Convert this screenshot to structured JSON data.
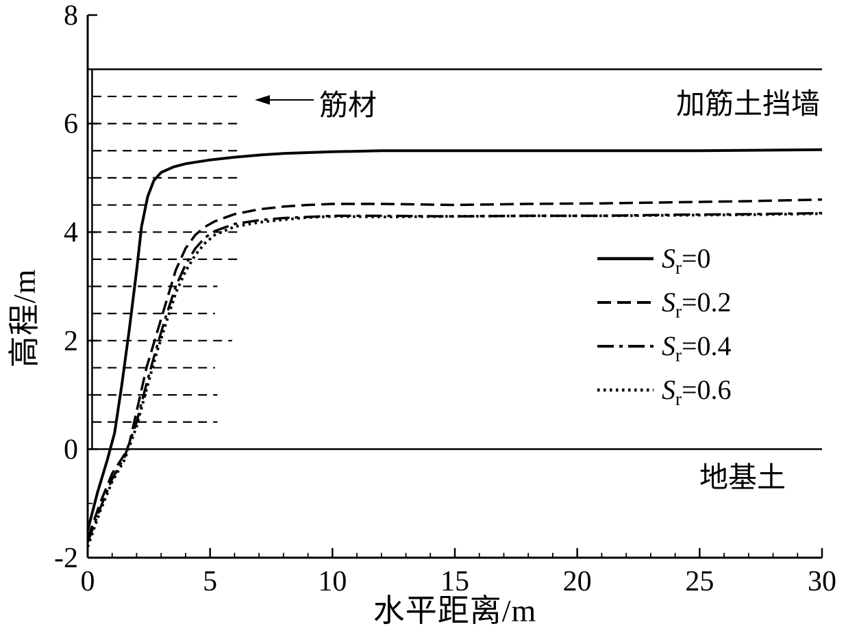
{
  "figure": {
    "background": "#ffffff",
    "ink": "#000000"
  },
  "axes": {
    "x": {
      "label": "水平距离/m",
      "min": 0,
      "max": 30,
      "major_ticks": [
        0,
        5,
        10,
        15,
        20,
        25,
        30
      ],
      "minor_step": 1
    },
    "y": {
      "label": "高程/m",
      "min": -2,
      "max": 8,
      "major_ticks": [
        -2,
        0,
        2,
        4,
        6,
        8
      ],
      "minor_step": 1
    }
  },
  "annotations": {
    "reinforcement_label": "筋材",
    "wall_label": "加筋土挡墙",
    "foundation_label": "地基土"
  },
  "chart_data": {
    "type": "line",
    "title": "",
    "xlabel": "水平距离/m",
    "ylabel": "高程/m",
    "xlim": [
      0,
      30
    ],
    "ylim": [
      -2,
      8
    ],
    "grid": false,
    "legend_position": "center-right",
    "series": [
      {
        "label_var": "S",
        "label_sub": "r",
        "label_eq": "=0",
        "style": "solid",
        "points": [
          [
            0,
            -1.5
          ],
          [
            0.4,
            -0.8
          ],
          [
            0.8,
            -0.2
          ],
          [
            1.1,
            0.3
          ],
          [
            1.4,
            1.2
          ],
          [
            1.7,
            2.2
          ],
          [
            2.0,
            3.3
          ],
          [
            2.2,
            4.1
          ],
          [
            2.45,
            4.65
          ],
          [
            2.7,
            4.95
          ],
          [
            3.0,
            5.1
          ],
          [
            3.5,
            5.2
          ],
          [
            4,
            5.26
          ],
          [
            5,
            5.33
          ],
          [
            6,
            5.38
          ],
          [
            7,
            5.42
          ],
          [
            8,
            5.45
          ],
          [
            10,
            5.48
          ],
          [
            12,
            5.5
          ],
          [
            15,
            5.5
          ],
          [
            20,
            5.5
          ],
          [
            25,
            5.5
          ],
          [
            30,
            5.52
          ]
        ]
      },
      {
        "label_var": "S",
        "label_sub": "r",
        "label_eq": "=0.2",
        "style": "dashed",
        "points": [
          [
            0,
            -1.65
          ],
          [
            0.5,
            -1.0
          ],
          [
            1.0,
            -0.45
          ],
          [
            1.5,
            -0.1
          ],
          [
            1.7,
            0.1
          ],
          [
            2.0,
            0.7
          ],
          [
            2.4,
            1.5
          ],
          [
            2.8,
            2.1
          ],
          [
            3.2,
            2.7
          ],
          [
            3.6,
            3.3
          ],
          [
            4.0,
            3.7
          ],
          [
            4.4,
            3.95
          ],
          [
            4.8,
            4.1
          ],
          [
            5.2,
            4.2
          ],
          [
            6,
            4.33
          ],
          [
            7,
            4.42
          ],
          [
            8,
            4.47
          ],
          [
            9,
            4.5
          ],
          [
            10,
            4.52
          ],
          [
            12,
            4.52
          ],
          [
            15,
            4.5
          ],
          [
            18,
            4.52
          ],
          [
            21,
            4.53
          ],
          [
            24,
            4.55
          ],
          [
            27,
            4.57
          ],
          [
            30,
            4.6
          ]
        ]
      },
      {
        "label_var": "S",
        "label_sub": "r",
        "label_eq": "=0.4",
        "style": "dashdot",
        "points": [
          [
            0,
            -1.72
          ],
          [
            0.5,
            -1.1
          ],
          [
            1.0,
            -0.55
          ],
          [
            1.5,
            -0.15
          ],
          [
            2.0,
            0.5
          ],
          [
            2.4,
            1.2
          ],
          [
            2.8,
            1.85
          ],
          [
            3.2,
            2.45
          ],
          [
            3.6,
            3.0
          ],
          [
            4.0,
            3.4
          ],
          [
            4.4,
            3.7
          ],
          [
            4.8,
            3.9
          ],
          [
            5.2,
            4.02
          ],
          [
            6,
            4.15
          ],
          [
            7,
            4.22
          ],
          [
            8,
            4.26
          ],
          [
            9,
            4.28
          ],
          [
            10,
            4.3
          ],
          [
            12,
            4.3
          ],
          [
            15,
            4.29
          ],
          [
            18,
            4.3
          ],
          [
            21,
            4.3
          ],
          [
            24,
            4.32
          ],
          [
            27,
            4.33
          ],
          [
            30,
            4.35
          ]
        ]
      },
      {
        "label_var": "S",
        "label_sub": "r",
        "label_eq": "=0.6",
        "style": "dotted",
        "points": [
          [
            0,
            -1.8
          ],
          [
            0.5,
            -1.15
          ],
          [
            1.0,
            -0.6
          ],
          [
            1.5,
            -0.2
          ],
          [
            2.0,
            0.42
          ],
          [
            2.4,
            1.1
          ],
          [
            2.8,
            1.75
          ],
          [
            3.2,
            2.32
          ],
          [
            3.6,
            2.88
          ],
          [
            4.0,
            3.28
          ],
          [
            4.4,
            3.58
          ],
          [
            4.8,
            3.8
          ],
          [
            5.2,
            3.95
          ],
          [
            6,
            4.1
          ],
          [
            7,
            4.18
          ],
          [
            8,
            4.23
          ],
          [
            9,
            4.27
          ],
          [
            10,
            4.29
          ],
          [
            12,
            4.28
          ],
          [
            15,
            4.29
          ],
          [
            18,
            4.3
          ],
          [
            21,
            4.3
          ],
          [
            24,
            4.31
          ],
          [
            27,
            4.32
          ],
          [
            30,
            4.34
          ]
        ]
      }
    ],
    "structure": {
      "wall_top_y": 7,
      "ground_y": 0,
      "wall_face_x": 0.18,
      "reinforcement_layers": [
        {
          "y": 0.5,
          "x_end": 5.3
        },
        {
          "y": 1.0,
          "x_end": 5.3
        },
        {
          "y": 1.5,
          "x_end": 5.2
        },
        {
          "y": 2.0,
          "x_end": 5.9
        },
        {
          "y": 2.5,
          "x_end": 5.2
        },
        {
          "y": 3.0,
          "x_end": 5.3
        },
        {
          "y": 3.5,
          "x_end": 6.3
        },
        {
          "y": 4.0,
          "x_end": 6.3
        },
        {
          "y": 4.5,
          "x_end": 6.1
        },
        {
          "y": 5.0,
          "x_end": 6.3
        },
        {
          "y": 5.5,
          "x_end": 6.3
        },
        {
          "y": 6.0,
          "x_end": 6.2
        },
        {
          "y": 6.5,
          "x_end": 6.1
        }
      ]
    }
  }
}
